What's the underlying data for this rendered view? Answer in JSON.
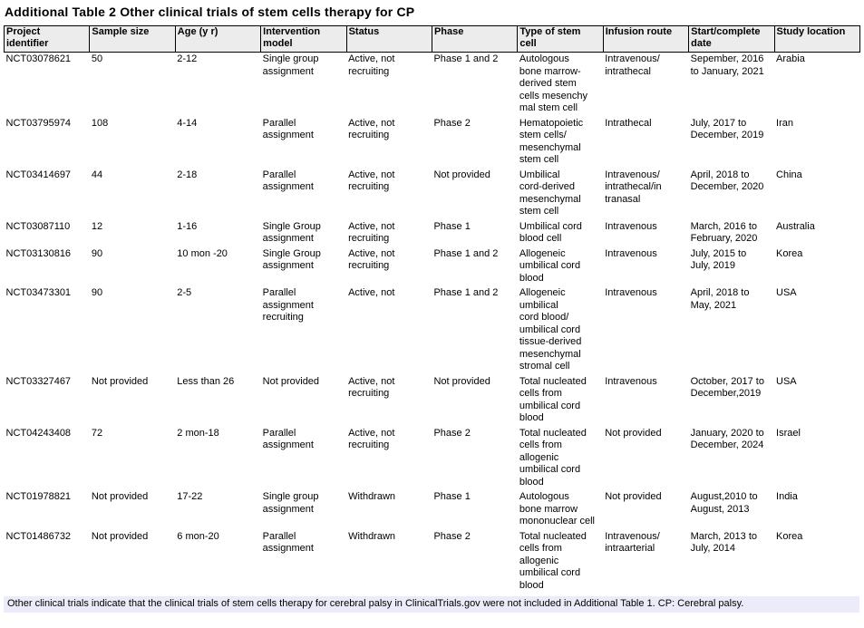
{
  "title": "Additional Table 2 Other clinical trials of stem cells therapy for CP",
  "table": {
    "column_keys": [
      "project-identifier",
      "sample-size",
      "age",
      "intervention-model",
      "status",
      "phase",
      "stem-cell-type",
      "infusion-route",
      "start-complete-date",
      "study-location"
    ],
    "columns": [
      "Project\nidentifier",
      "Sample size",
      "Age (y r)",
      "Intervention\nmodel",
      "Status",
      "Phase",
      "Type of stem\ncell",
      "Infusion route",
      "Start/complete\ndate",
      "Study location"
    ],
    "rows": [
      [
        "NCT03078621",
        "50",
        "2-12",
        "Single group\nassignment",
        "Active, not\nrecruiting",
        "Phase 1 and 2",
        "Autologous\nbone marrow-\nderived stem\ncells mesenchy\nmal stem cell",
        "Intravenous/\nintrathecal",
        "Sepember, 2016\nto January, 2021",
        "Arabia"
      ],
      [
        "NCT03795974",
        "108",
        "4-14",
        "Parallel\nassignment",
        "Active, not\nrecruiting",
        "Phase 2",
        "Hematopoietic\nstem cells/\nmesenchymal\nstem cell",
        "Intrathecal",
        "July, 2017 to\nDecember, 2019",
        "Iran"
      ],
      [
        "NCT03414697",
        "44",
        "2-18",
        "Parallel\nassignment",
        "Active, not\nrecruiting",
        "Not provided",
        "Umbilical\ncord-derived\nmesenchymal\nstem cell",
        "Intravenous/\nintrathecal/in\ntranasal",
        "April, 2018 to\nDecember, 2020",
        "China"
      ],
      [
        "NCT03087110",
        "12",
        "1-16",
        "Single Group\nassignment",
        "Active, not\nrecruiting",
        "Phase 1",
        "Umbilical cord\nblood cell",
        "Intravenous",
        "March, 2016 to\nFebruary, 2020",
        "Australia"
      ],
      [
        "NCT03130816",
        "90",
        "10 mon -20",
        "Single Group\nassignment",
        "Active, not\nrecruiting",
        "Phase 1 and 2",
        "Allogeneic\numbilical cord\nblood",
        "Intravenous",
        "July, 2015 to\nJuly, 2019",
        "Korea"
      ],
      [
        "NCT03473301",
        "90",
        "2-5",
        "Parallel\nassignment\nrecruiting",
        "Active, not",
        "Phase 1 and 2",
        "Allogeneic\numbilical\ncord blood/\numbilical cord\ntissue-derived\nmesenchymal\nstromal cell",
        "Intravenous",
        "April, 2018 to\nMay, 2021",
        "USA"
      ],
      [
        "NCT03327467",
        "Not provided",
        "Less than 26",
        "Not provided",
        "Active, not\nrecruiting",
        "Not provided",
        "Total nucleated\ncells from\numbilical cord\nblood",
        "Intravenous",
        "October, 2017 to\nDecember,2019",
        "USA"
      ],
      [
        "NCT04243408",
        "72",
        "2 mon-18",
        "Parallel\nassignment",
        "Active, not\nrecruiting",
        "Phase 2",
        "Total nucleated\ncells from\nallogenic\numbilical cord\nblood",
        "Not provided",
        "January, 2020 to\nDecember, 2024",
        "Israel"
      ],
      [
        "NCT01978821",
        "Not provided",
        "17-22",
        "Single group\nassignment",
        "Withdrawn",
        "Phase 1",
        "Autologous\nbone marrow\nmononuclear cell",
        "Not provided",
        "August,2010 to\nAugust, 2013",
        "India"
      ],
      [
        "NCT01486732",
        "Not provided",
        "6 mon-20",
        "Parallel\nassignment",
        "Withdrawn",
        "Phase 2",
        "Total nucleated\ncells from\nallogenic\numbilical cord\nblood",
        "Intravenous/\nintraarterial",
        "March, 2013 to\nJuly, 2014",
        "Korea"
      ]
    ]
  },
  "footnote": "Other clinical trials indicate that the clinical trials of stem cells therapy for cerebral palsy in ClinicalTrials.gov were not included in Additional Table 1. CP: Cerebral palsy.",
  "colors": {
    "header_bg": "#ececec",
    "footnote_bg": "#ebebfa",
    "border": "#000000",
    "text": "#000000"
  }
}
